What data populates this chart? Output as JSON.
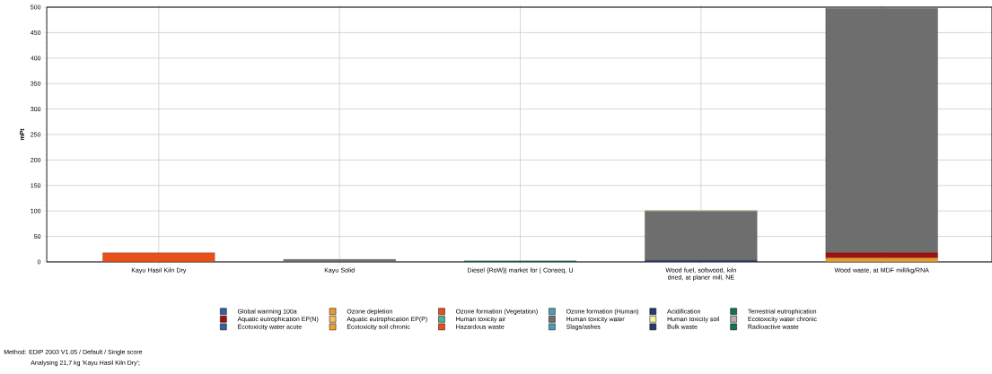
{
  "chart_data": {
    "type": "bar",
    "stacked": true,
    "ylabel": "mPt",
    "categories": [
      "Kayu Hasil Kiln Dry",
      "Kayu Solid",
      "Diesel {RoW}| market for | Conseq, U",
      "Wood fuel, softwood, kiln dried, at planer mill, NE",
      "Wood waste, at MDF mill/kg/RNA"
    ],
    "ylim": [
      0,
      500
    ],
    "yticks": [
      0,
      50,
      100,
      150,
      200,
      250,
      300,
      350,
      400,
      450,
      500
    ],
    "grid": true,
    "legend": "bottom",
    "series": [
      {
        "name": "Global warming 100a",
        "color": "#3a5fa0",
        "values": [
          0,
          0,
          0,
          0,
          0
        ]
      },
      {
        "name": "Ozone depletion",
        "color": "#e89a30",
        "values": [
          0,
          0,
          0,
          0,
          8
        ]
      },
      {
        "name": "Ozone formation (Vegetation)",
        "color": "#e8501a",
        "values": [
          18,
          0,
          0,
          0,
          0
        ]
      },
      {
        "name": "Ozone formation (Human)",
        "color": "#4aa0b0",
        "values": [
          0,
          0,
          0,
          0,
          0
        ]
      },
      {
        "name": "Acidification",
        "color": "#243a70",
        "values": [
          0,
          0,
          0,
          3,
          0
        ]
      },
      {
        "name": "Terrestrial eutrophication",
        "color": "#1a7050",
        "values": [
          0,
          0,
          2,
          0,
          0
        ]
      },
      {
        "name": "Aquatic eutrophication EP(N)",
        "color": "#a01010",
        "values": [
          0,
          0,
          0,
          0,
          10
        ]
      },
      {
        "name": "Aquatic eutrophication EP(P)",
        "color": "#f0c060",
        "values": [
          0,
          0,
          0,
          0,
          0
        ]
      },
      {
        "name": "Human toxicity air",
        "color": "#50b090",
        "values": [
          0,
          0,
          0,
          0,
          0
        ]
      },
      {
        "name": "Human toxicity water",
        "color": "#6e6e6e",
        "values": [
          0,
          5,
          0,
          96,
          480
        ]
      },
      {
        "name": "Human toxicity soil",
        "color": "#f8f0a0",
        "values": [
          0,
          0,
          0,
          2,
          0
        ]
      },
      {
        "name": "Ecotoxicity water chronic",
        "color": "#b0b0b0",
        "values": [
          0,
          0,
          0,
          0,
          0
        ]
      },
      {
        "name": "Ecotoxicity water acute",
        "color": "#3a5fa0",
        "values": [
          0,
          0,
          0,
          0,
          0
        ]
      },
      {
        "name": "Ecotoxicity soil chronic",
        "color": "#f0a030",
        "values": [
          0,
          0,
          0,
          0,
          0
        ]
      },
      {
        "name": "Hazardous waste",
        "color": "#e8501a",
        "values": [
          0,
          0,
          0,
          0,
          0
        ]
      },
      {
        "name": "Slags/ashes",
        "color": "#4aa0b0",
        "values": [
          0,
          0,
          0,
          0,
          0
        ]
      },
      {
        "name": "Bulk waste",
        "color": "#243a70",
        "values": [
          0,
          0,
          0,
          0,
          0
        ]
      },
      {
        "name": "Radioactive waste",
        "color": "#1a7050",
        "values": [
          0,
          0,
          0,
          0,
          0
        ]
      }
    ],
    "annotations": [
      "Method: EDIP 2003 V1.05 / Default / Single score",
      "Analysing 21,7 kg 'Kayu Hasil Kiln Dry';"
    ]
  }
}
